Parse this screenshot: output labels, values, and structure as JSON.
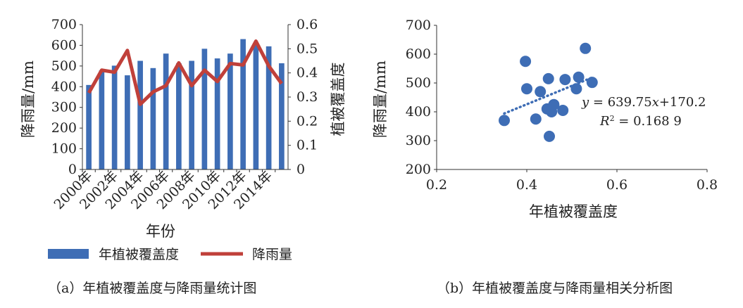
{
  "captions": {
    "a": "（a）年植被覆盖度与降雨量统计图",
    "b": "（b）年植被覆盖度与降雨量相关分析图"
  },
  "chart_data": [
    {
      "type": "bar",
      "id": "a",
      "xlabel": "年份",
      "ylabel": "降雨量/mm",
      "y2label": "植被覆盖度",
      "categories": [
        "2000年",
        "2001年",
        "2002年",
        "2003年",
        "2004年",
        "2005年",
        "2006年",
        "2007年",
        "2008年",
        "2009年",
        "2010年",
        "2011年",
        "2012年",
        "2013年",
        "2014年",
        "2015年"
      ],
      "tick_labels": [
        "2000年",
        "2002年",
        "2004年",
        "2006年",
        "2008年",
        "2010年",
        "2012年",
        "2014年"
      ],
      "ylim": [
        0,
        700
      ],
      "yticks": [
        0,
        100,
        200,
        300,
        400,
        500,
        600,
        700
      ],
      "y2lim": [
        0,
        0.6
      ],
      "y2ticks": [
        "0",
        "0.1",
        "0.2",
        "0.3",
        "0.4",
        "0.5",
        "0.6"
      ],
      "legend_position": "bottom",
      "series": [
        {
          "name": "年植被覆盖度",
          "kind": "bar",
          "axis": "right",
          "color": "#3e6db5",
          "values": [
            0.35,
            0.41,
            0.43,
            0.39,
            0.45,
            0.42,
            0.48,
            0.44,
            0.45,
            0.5,
            0.46,
            0.48,
            0.54,
            0.52,
            0.51,
            0.44
          ]
        },
        {
          "name": "降雨量",
          "kind": "line",
          "axis": "left",
          "color": "#c0403a",
          "values": [
            370,
            480,
            470,
            575,
            315,
            375,
            405,
            515,
            405,
            480,
            425,
            512,
            505,
            620,
            500,
            415
          ]
        }
      ]
    },
    {
      "type": "scatter",
      "id": "b",
      "xlabel": "年植被覆盖度",
      "ylabel": "降雨量/mm",
      "xlim": [
        0.2,
        0.8
      ],
      "xticks": [
        "0.2",
        "0.4",
        "0.6",
        "0.8"
      ],
      "ylim": [
        200,
        700
      ],
      "yticks": [
        200,
        300,
        400,
        500,
        600,
        700
      ],
      "color": "#3e6db5",
      "points": [
        [
          0.35,
          370
        ],
        [
          0.397,
          575
        ],
        [
          0.4,
          480
        ],
        [
          0.42,
          375
        ],
        [
          0.43,
          470
        ],
        [
          0.445,
          410
        ],
        [
          0.448,
          515
        ],
        [
          0.45,
          315
        ],
        [
          0.455,
          400
        ],
        [
          0.46,
          425
        ],
        [
          0.48,
          405
        ],
        [
          0.485,
          512
        ],
        [
          0.51,
          480
        ],
        [
          0.515,
          520
        ],
        [
          0.53,
          620
        ],
        [
          0.545,
          502
        ]
      ],
      "trendline": {
        "slope": 639.75,
        "intercept": 170.2,
        "x_range": [
          0.35,
          0.545
        ],
        "style": "dotted"
      },
      "equation": {
        "y": "y",
        "rest": " = 639.75",
        "x": "x",
        "tail": "+170.2"
      },
      "r2": {
        "label": "R",
        "sup": "2",
        "rest": " = 0.168 9"
      }
    }
  ]
}
